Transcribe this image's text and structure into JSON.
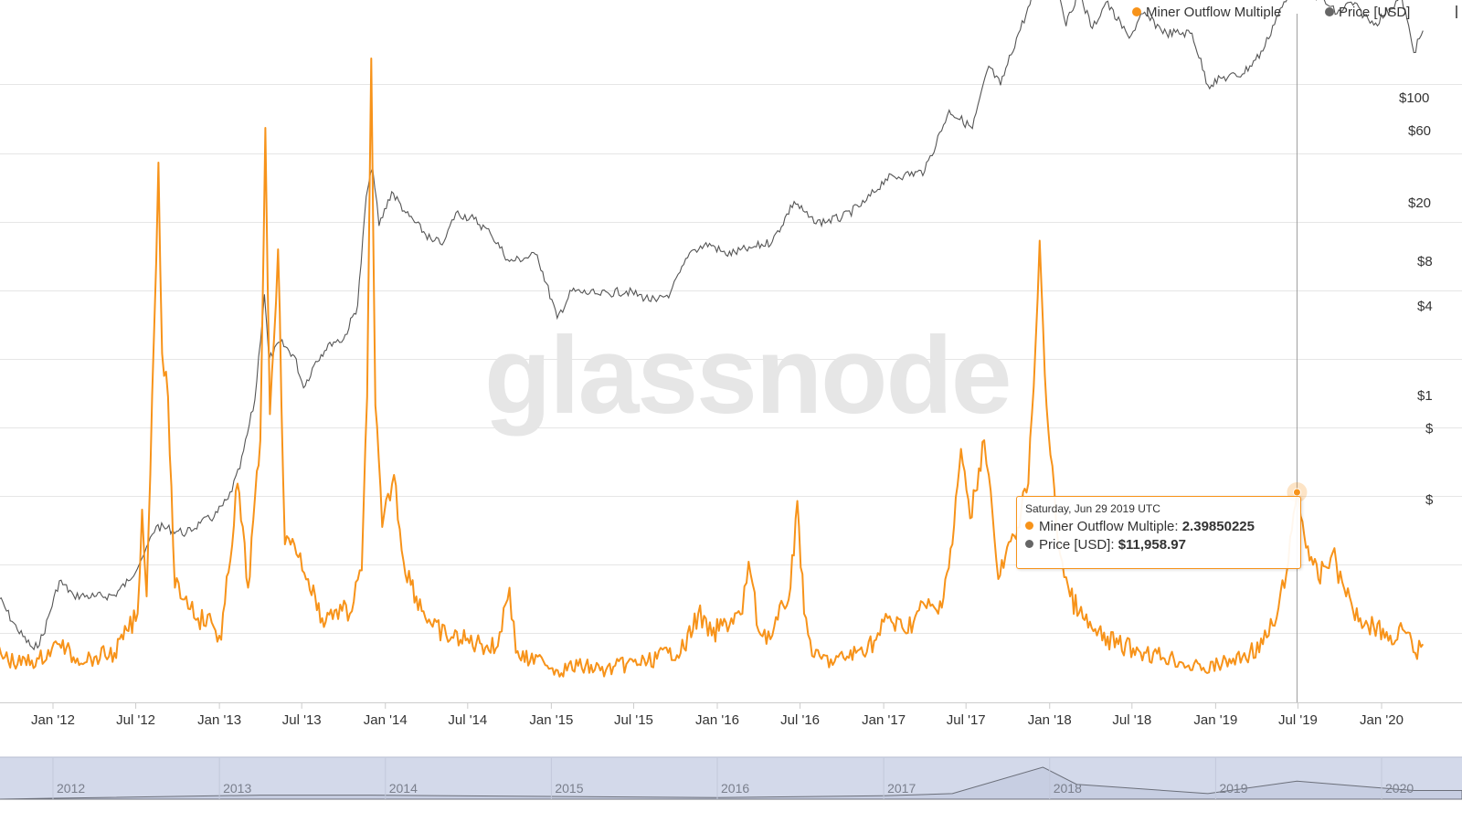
{
  "legend": {
    "series_1": "Miner Outflow Multiple",
    "series_2": "Price [USD]"
  },
  "watermark": "glassnode",
  "tooltip": {
    "date": "Saturday, Jun 29 2019 UTC",
    "mom_label": "Miner Outflow Multiple: ",
    "mom_value": "2.39850225",
    "price_label": "Price [USD]: ",
    "price_value": "$11,958.97"
  },
  "colors": {
    "mom": "#f7931a",
    "price": "#555555",
    "navigator_fill": "#d3d9ea",
    "grid": "#e6e6e6"
  },
  "chart_data": {
    "type": "line",
    "x_ticks": [
      "Jan '12",
      "Jul '12",
      "Jan '13",
      "Jul '13",
      "Jan '14",
      "Jul '14",
      "Jan '15",
      "Jul '15",
      "Jan '16",
      "Jul '16",
      "Jan '17",
      "Jul '17",
      "Jan '18",
      "Jul '18",
      "Jan '19",
      "Jul '19",
      "Jan '20"
    ],
    "y_tick_labels_right": [
      "$100",
      "$60",
      "$20",
      "$8",
      "$4",
      "$1",
      "$",
      "$"
    ],
    "navigator_labels": [
      "2012",
      "2013",
      "2014",
      "2015",
      "2016",
      "2017",
      "2018",
      "2019",
      "2020"
    ],
    "price_scale": "log",
    "series": [
      {
        "name": "Miner Outflow Multiple",
        "color": "#f7931a",
        "points": [
          [
            "2011-09-01",
            0.55
          ],
          [
            "2011-10-15",
            0.42
          ],
          [
            "2011-12-01",
            0.48
          ],
          [
            "2012-01-15",
            0.65
          ],
          [
            "2012-02-15",
            0.5
          ],
          [
            "2012-04-01",
            0.5
          ],
          [
            "2012-05-15",
            0.55
          ],
          [
            "2012-06-15",
            0.8
          ],
          [
            "2012-07-05",
            1.0
          ],
          [
            "2012-07-15",
            2.2
          ],
          [
            "2012-07-25",
            1.2
          ],
          [
            "2012-08-10",
            4.2
          ],
          [
            "2012-08-20",
            6.2
          ],
          [
            "2012-08-28",
            4.0
          ],
          [
            "2012-09-10",
            3.5
          ],
          [
            "2012-09-25",
            1.3
          ],
          [
            "2012-10-20",
            1.2
          ],
          [
            "2012-11-15",
            0.95
          ],
          [
            "2012-12-15",
            0.9
          ],
          [
            "2013-01-05",
            0.7
          ],
          [
            "2013-02-10",
            2.5
          ],
          [
            "2013-03-05",
            1.3
          ],
          [
            "2013-04-01",
            3.0
          ],
          [
            "2013-04-12",
            6.6
          ],
          [
            "2013-04-22",
            3.3
          ],
          [
            "2013-05-10",
            5.2
          ],
          [
            "2013-05-25",
            1.8
          ],
          [
            "2013-06-15",
            1.8
          ],
          [
            "2013-07-15",
            1.4
          ],
          [
            "2013-08-15",
            0.95
          ],
          [
            "2013-09-15",
            1.05
          ],
          [
            "2013-10-15",
            1.0
          ],
          [
            "2013-11-10",
            1.5
          ],
          [
            "2013-11-22",
            3.5
          ],
          [
            "2013-12-01",
            7.4
          ],
          [
            "2013-12-10",
            3.4
          ],
          [
            "2013-12-25",
            2.0
          ],
          [
            "2014-01-20",
            2.6
          ],
          [
            "2014-02-10",
            1.6
          ],
          [
            "2014-03-10",
            1.2
          ],
          [
            "2014-04-15",
            0.85
          ],
          [
            "2014-05-15",
            0.75
          ],
          [
            "2014-06-15",
            0.7
          ],
          [
            "2014-08-01",
            0.65
          ],
          [
            "2014-09-01",
            0.6
          ],
          [
            "2014-10-01",
            1.3
          ],
          [
            "2014-10-15",
            0.55
          ],
          [
            "2014-11-15",
            0.45
          ],
          [
            "2014-12-15",
            0.45
          ],
          [
            "2015-01-15",
            0.35
          ],
          [
            "2015-03-01",
            0.4
          ],
          [
            "2015-05-01",
            0.35
          ],
          [
            "2015-06-15",
            0.42
          ],
          [
            "2015-08-01",
            0.45
          ],
          [
            "2015-09-15",
            0.55
          ],
          [
            "2015-10-20",
            0.6
          ],
          [
            "2015-11-20",
            1.0
          ],
          [
            "2015-12-20",
            0.75
          ],
          [
            "2016-01-20",
            0.9
          ],
          [
            "2016-02-25",
            1.0
          ],
          [
            "2016-03-10",
            1.6
          ],
          [
            "2016-04-01",
            0.8
          ],
          [
            "2016-05-01",
            0.75
          ],
          [
            "2016-06-10",
            1.3
          ],
          [
            "2016-06-25",
            2.3
          ],
          [
            "2016-07-10",
            1.0
          ],
          [
            "2016-08-01",
            0.5
          ],
          [
            "2016-09-15",
            0.45
          ],
          [
            "2016-11-01",
            0.55
          ],
          [
            "2016-12-15",
            0.7
          ],
          [
            "2017-01-10",
            0.95
          ],
          [
            "2017-02-15",
            0.8
          ],
          [
            "2017-04-01",
            1.1
          ],
          [
            "2017-05-01",
            1.0
          ],
          [
            "2017-06-01",
            1.8
          ],
          [
            "2017-06-20",
            2.9
          ],
          [
            "2017-07-10",
            2.1
          ],
          [
            "2017-08-10",
            3.0
          ],
          [
            "2017-08-20",
            2.6
          ],
          [
            "2017-09-10",
            1.4
          ],
          [
            "2017-10-15",
            1.9
          ],
          [
            "2017-11-15",
            2.5
          ],
          [
            "2017-12-01",
            4.1
          ],
          [
            "2017-12-10",
            5.3
          ],
          [
            "2017-12-25",
            3.4
          ],
          [
            "2018-01-20",
            1.8
          ],
          [
            "2018-02-15",
            1.2
          ],
          [
            "2018-03-15",
            0.95
          ],
          [
            "2018-04-15",
            0.75
          ],
          [
            "2018-06-01",
            0.65
          ],
          [
            "2018-08-01",
            0.55
          ],
          [
            "2018-10-01",
            0.48
          ],
          [
            "2018-12-01",
            0.35
          ],
          [
            "2019-01-15",
            0.42
          ],
          [
            "2019-03-01",
            0.5
          ],
          [
            "2019-04-15",
            0.65
          ],
          [
            "2019-05-15",
            0.95
          ],
          [
            "2019-06-10",
            1.6
          ],
          [
            "2019-06-29",
            2.4
          ],
          [
            "2019-07-15",
            1.9
          ],
          [
            "2019-08-15",
            1.4
          ],
          [
            "2019-09-15",
            1.7
          ],
          [
            "2019-10-15",
            1.2
          ],
          [
            "2019-11-15",
            0.95
          ],
          [
            "2019-12-15",
            0.85
          ],
          [
            "2020-01-20",
            0.75
          ],
          [
            "2020-02-20",
            0.8
          ],
          [
            "2020-03-15",
            0.55
          ],
          [
            "2020-04-01",
            0.65
          ]
        ]
      },
      {
        "name": "Price [USD]",
        "color": "#555555",
        "points": [
          [
            "2011-09-01",
            5.0
          ],
          [
            "2011-10-15",
            3.2
          ],
          [
            "2011-11-20",
            2.5
          ],
          [
            "2011-12-10",
            3.0
          ],
          [
            "2012-01-15",
            6.0
          ],
          [
            "2012-02-15",
            5.0
          ],
          [
            "2012-04-01",
            4.9
          ],
          [
            "2012-05-15",
            5.0
          ],
          [
            "2012-06-15",
            6.0
          ],
          [
            "2012-07-20",
            8.5
          ],
          [
            "2012-08-15",
            12.0
          ],
          [
            "2012-09-20",
            11.5
          ],
          [
            "2012-10-20",
            11.0
          ],
          [
            "2012-11-20",
            12.5
          ],
          [
            "2012-12-20",
            13.5
          ],
          [
            "2013-01-20",
            17.0
          ],
          [
            "2013-02-15",
            25.0
          ],
          [
            "2013-03-20",
            60.0
          ],
          [
            "2013-04-10",
            230.0
          ],
          [
            "2013-04-20",
            100.0
          ],
          [
            "2013-05-15",
            125.0
          ],
          [
            "2013-06-15",
            105.0
          ],
          [
            "2013-07-05",
            70.0
          ],
          [
            "2013-08-01",
            98.0
          ],
          [
            "2013-09-01",
            125.0
          ],
          [
            "2013-10-01",
            130.0
          ],
          [
            "2013-11-01",
            200.0
          ],
          [
            "2013-11-20",
            800.0
          ],
          [
            "2013-12-04",
            1150.0
          ],
          [
            "2013-12-18",
            550.0
          ],
          [
            "2014-01-15",
            850.0
          ],
          [
            "2014-02-15",
            650.0
          ],
          [
            "2014-04-15",
            450.0
          ],
          [
            "2014-05-10",
            450.0
          ],
          [
            "2014-06-05",
            650.0
          ],
          [
            "2014-07-15",
            600.0
          ],
          [
            "2014-08-20",
            500.0
          ],
          [
            "2014-10-01",
            350.0
          ],
          [
            "2014-12-01",
            380.0
          ],
          [
            "2015-01-14",
            170.0
          ],
          [
            "2015-02-15",
            240.0
          ],
          [
            "2015-04-15",
            230.0
          ],
          [
            "2015-06-15",
            240.0
          ],
          [
            "2015-08-20",
            210.0
          ],
          [
            "2015-09-20",
            235.0
          ],
          [
            "2015-11-05",
            400.0
          ],
          [
            "2015-12-15",
            440.0
          ],
          [
            "2016-01-20",
            380.0
          ],
          [
            "2016-03-15",
            415.0
          ],
          [
            "2016-05-01",
            450.0
          ],
          [
            "2016-06-18",
            750.0
          ],
          [
            "2016-08-01",
            570.0
          ],
          [
            "2016-10-01",
            610.0
          ],
          [
            "2016-11-20",
            740.0
          ],
          [
            "2017-01-05",
            1000.0
          ],
          [
            "2017-02-15",
            1050.0
          ],
          [
            "2017-04-01",
            1100.0
          ],
          [
            "2017-05-25",
            2400.0
          ],
          [
            "2017-07-15",
            1900.0
          ],
          [
            "2017-08-20",
            4200.0
          ],
          [
            "2017-09-15",
            3300.0
          ],
          [
            "2017-10-20",
            6000.0
          ],
          [
            "2017-12-01",
            11000.0
          ],
          [
            "2017-12-17",
            19500.0
          ],
          [
            "2018-01-15",
            13500.0
          ],
          [
            "2018-02-06",
            7000.0
          ],
          [
            "2018-03-05",
            11000.0
          ],
          [
            "2018-04-05",
            6800.0
          ],
          [
            "2018-05-05",
            9500.0
          ],
          [
            "2018-06-25",
            6000.0
          ],
          [
            "2018-07-25",
            8200.0
          ],
          [
            "2018-09-15",
            6400.0
          ],
          [
            "2018-11-10",
            6400.0
          ],
          [
            "2018-12-15",
            3300.0
          ],
          [
            "2019-01-15",
            3600.0
          ],
          [
            "2019-03-01",
            3800.0
          ],
          [
            "2019-04-15",
            5100.0
          ],
          [
            "2019-05-15",
            7900.0
          ],
          [
            "2019-06-29",
            11958.97
          ],
          [
            "2019-07-20",
            10500.0
          ],
          [
            "2019-08-15",
            10300.0
          ],
          [
            "2019-09-25",
            8200.0
          ],
          [
            "2019-10-26",
            9500.0
          ],
          [
            "2019-12-15",
            7100.0
          ],
          [
            "2020-01-20",
            8700.0
          ],
          [
            "2020-02-14",
            10300.0
          ],
          [
            "2020-03-12",
            5000.0
          ],
          [
            "2020-04-01",
            6600.0
          ]
        ]
      }
    ],
    "navigator_series": [
      [
        "2012-01-01",
        0.0
      ],
      [
        "2013-04-01",
        0.1
      ],
      [
        "2013-12-01",
        0.1
      ],
      [
        "2016-01-01",
        0.02
      ],
      [
        "2017-01-01",
        0.08
      ],
      [
        "2017-06-01",
        0.15
      ],
      [
        "2017-12-17",
        1.0
      ],
      [
        "2018-03-01",
        0.45
      ],
      [
        "2018-12-15",
        0.15
      ],
      [
        "2019-06-29",
        0.55
      ],
      [
        "2019-12-15",
        0.35
      ],
      [
        "2020-03-12",
        0.25
      ]
    ],
    "tooltip_date": "2019-06-29",
    "legend_position": "top-right"
  }
}
